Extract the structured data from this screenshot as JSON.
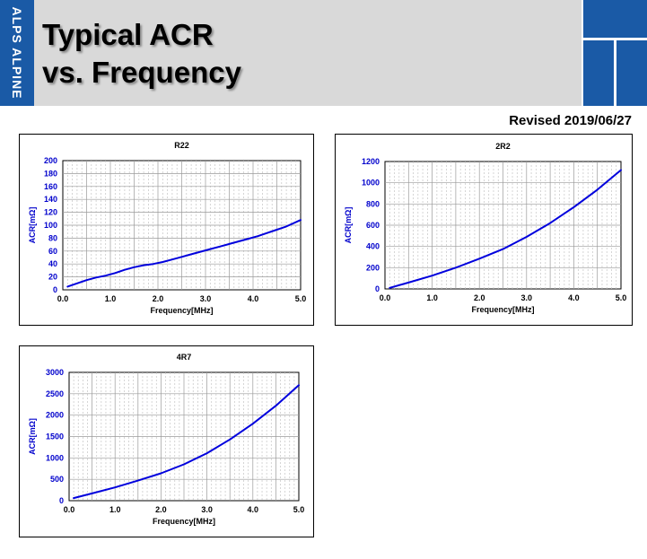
{
  "header": {
    "logo": "ALPS ALPINE",
    "title_line1": "Typical ACR",
    "title_line2": "vs. Frequency",
    "brand_color": "#1a5aa6"
  },
  "revised": "Revised 2019/06/27",
  "chart_data": [
    {
      "type": "line",
      "title": "R22",
      "xlabel": "Frequency[MHz]",
      "ylabel": "ACR[mΩ]",
      "xlim": [
        0,
        5
      ],
      "ylim": [
        0,
        200
      ],
      "xticks": [
        "0.0",
        "1.0",
        "2.0",
        "3.0",
        "4.0",
        "5.0"
      ],
      "yticks": [
        "0",
        "20",
        "40",
        "60",
        "80",
        "100",
        "120",
        "140",
        "160",
        "180",
        "200"
      ],
      "series": [
        {
          "color": "#0000dd",
          "x": [
            0.1,
            0.3,
            0.5,
            0.7,
            0.9,
            1.1,
            1.3,
            1.5,
            1.7,
            1.9,
            2.1,
            2.3,
            2.5,
            2.7,
            2.9,
            3.1,
            3.3,
            3.5,
            3.7,
            3.9,
            4.1,
            4.3,
            4.5,
            4.7,
            5.0
          ],
          "y": [
            5,
            10,
            15,
            19,
            22,
            26,
            31,
            35,
            38,
            40,
            43,
            47,
            51,
            55,
            59,
            63,
            67,
            71,
            75,
            79,
            83,
            88,
            93,
            98,
            108
          ]
        }
      ],
      "grid": true
    },
    {
      "type": "line",
      "title": "2R2",
      "xlabel": "Frequency[MHz]",
      "ylabel": "ACR[mΩ]",
      "xlim": [
        0,
        5
      ],
      "ylim": [
        0,
        1200
      ],
      "xticks": [
        "0.0",
        "1.0",
        "2.0",
        "3.0",
        "4.0",
        "5.0"
      ],
      "yticks": [
        "0",
        "200",
        "400",
        "600",
        "800",
        "1000",
        "1200"
      ],
      "series": [
        {
          "color": "#0000dd",
          "x": [
            0.1,
            0.5,
            1.0,
            1.5,
            2.0,
            2.5,
            3.0,
            3.5,
            4.0,
            4.5,
            5.0
          ],
          "y": [
            10,
            60,
            125,
            200,
            285,
            375,
            490,
            620,
            770,
            935,
            1120
          ]
        }
      ],
      "grid": true
    },
    {
      "type": "line",
      "title": "4R7",
      "xlabel": "Frequency[MHz]",
      "ylabel": "ACR[mΩ]",
      "xlim": [
        0,
        5
      ],
      "ylim": [
        0,
        3000
      ],
      "xticks": [
        "0.0",
        "1.0",
        "2.0",
        "3.0",
        "4.0",
        "5.0"
      ],
      "yticks": [
        "0",
        "500",
        "1000",
        "1500",
        "2000",
        "2500",
        "3000"
      ],
      "series": [
        {
          "color": "#0000dd",
          "x": [
            0.1,
            0.5,
            1.0,
            1.5,
            2.0,
            2.5,
            3.0,
            3.5,
            4.0,
            4.5,
            5.0
          ],
          "y": [
            60,
            170,
            310,
            470,
            640,
            850,
            1110,
            1430,
            1800,
            2220,
            2700
          ]
        }
      ],
      "grid": true
    }
  ]
}
